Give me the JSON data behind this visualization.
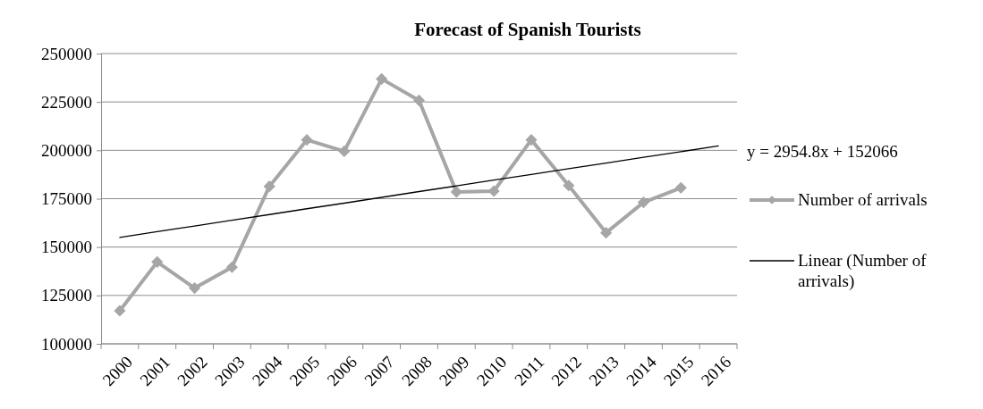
{
  "chart_data": {
    "type": "line",
    "title": "Forecast of Spanish Tourists",
    "categories": [
      "2000",
      "2001",
      "2002",
      "2003",
      "2004",
      "2005",
      "2006",
      "2007",
      "2008",
      "2009",
      "2010",
      "2011",
      "2012",
      "2013",
      "2014",
      "2015",
      "2016"
    ],
    "series": [
      {
        "name": "Number of arrivals",
        "color": "#a6a6a6",
        "marker": "diamond",
        "values": [
          117100,
          142300,
          128800,
          139600,
          181400,
          205400,
          199500,
          236900,
          225800,
          178500,
          178900,
          205400,
          181800,
          157400,
          173100,
          180600,
          null
        ]
      },
      {
        "name": "Linear (Number of arrivals)",
        "type": "line",
        "color": "#000000",
        "marker": "none",
        "values": [
          155000,
          158000,
          160900,
          163900,
          166800,
          169800,
          172700,
          175700,
          178700,
          181600,
          184600,
          187500,
          190500,
          193400,
          196400,
          199300,
          202300
        ]
      }
    ],
    "ylim": [
      100000,
      250000
    ],
    "yticks": [
      100000,
      125000,
      150000,
      175000,
      200000,
      225000,
      250000
    ],
    "grid": "y",
    "legend": "right",
    "annotations": [
      "y = 2954.8x + 152066"
    ]
  }
}
